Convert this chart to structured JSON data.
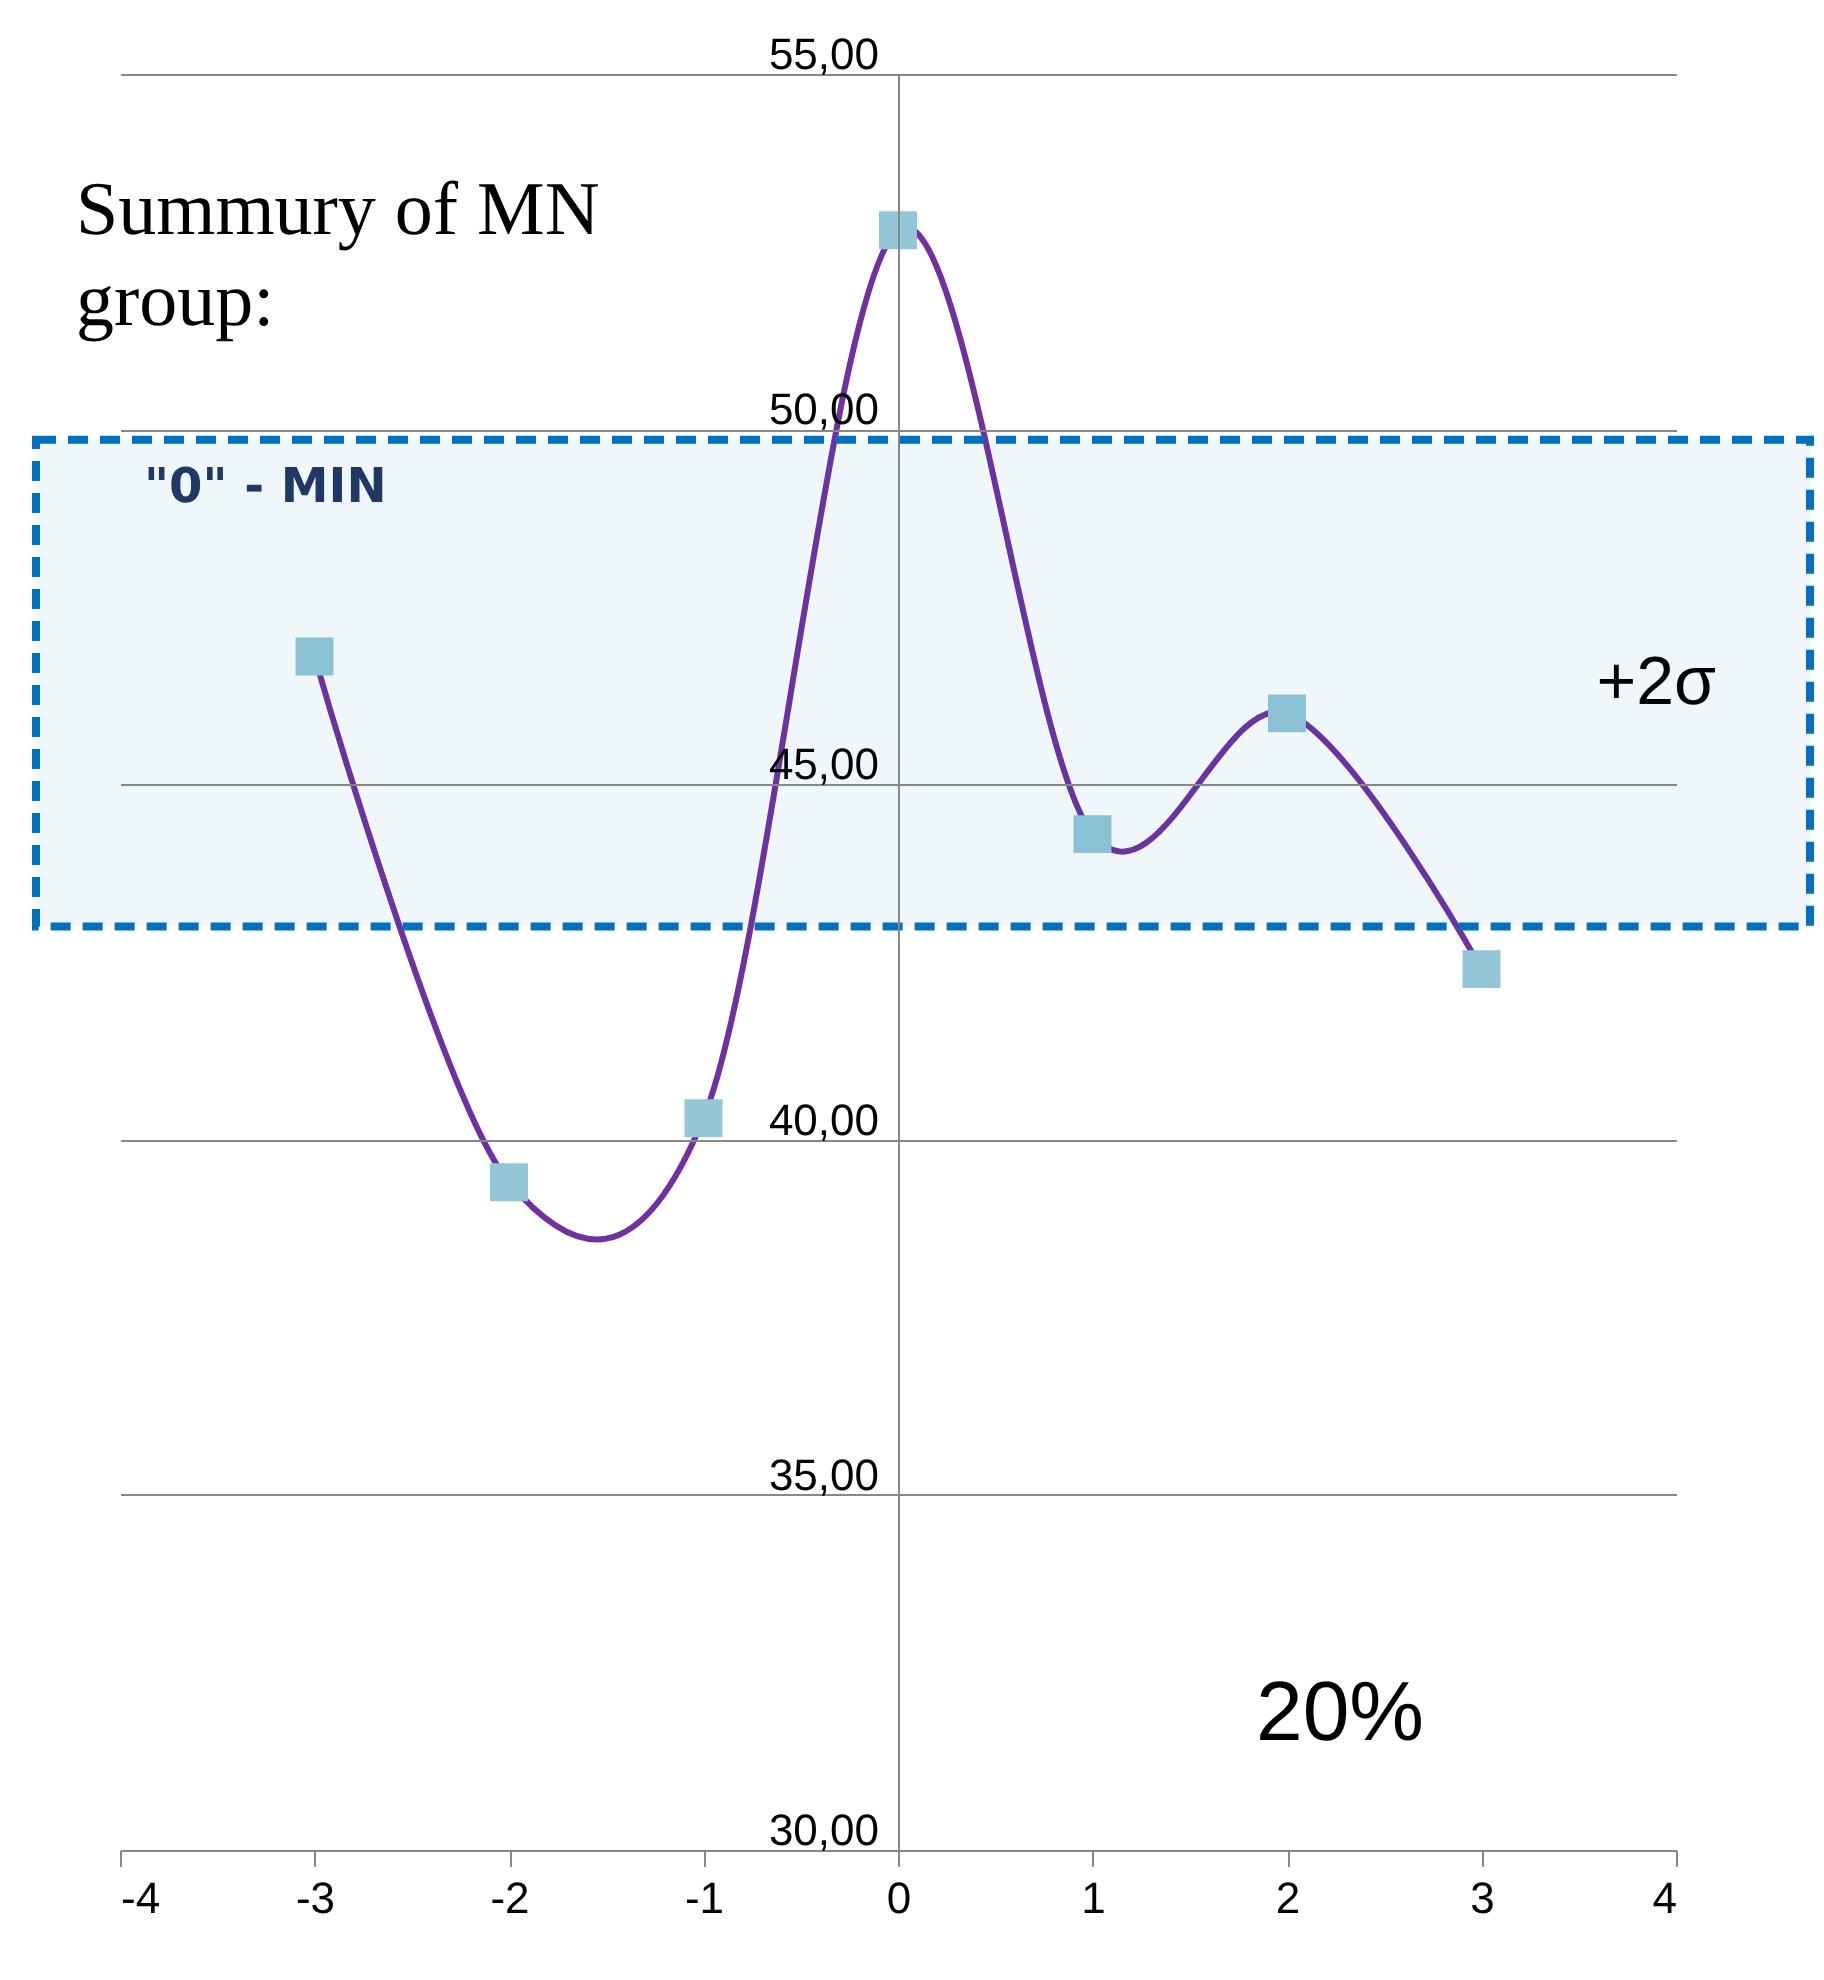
{
  "chart_data": {
    "type": "line",
    "x": [
      -3,
      -2,
      -1,
      0,
      1,
      2,
      3
    ],
    "series": [
      {
        "color": "#7030a0",
        "colors": [
          "#93c6d6",
          "#93c6d6",
          "#93c6d6",
          "#93c6d6",
          "#93c6d6",
          "#93c6d6",
          "#93c6d6"
        ],
        "values": [
          46.8,
          39.4,
          40.3,
          52.8,
          44.3,
          46.0,
          42.4
        ]
      }
    ],
    "xlim": [
      -4,
      4
    ],
    "xticks": [
      -4,
      -3,
      -2,
      -1,
      0,
      1,
      2,
      3,
      4
    ],
    "ylim": [
      30,
      55
    ],
    "yticks": [
      {
        "value": 30,
        "label": "30,00"
      },
      {
        "value": 35,
        "label": "35,00"
      },
      {
        "value": 40,
        "label": "40,00"
      },
      {
        "value": 45,
        "label": "45,00"
      },
      {
        "value": 50,
        "label": "50,00"
      },
      {
        "value": 55,
        "label": "55,00"
      }
    ],
    "grid": "y",
    "marker": "square",
    "line_style": "solid",
    "bands": [
      {
        "axis": "y",
        "from": 43.0,
        "to": 49.85,
        "label": "+2σ",
        "color": "#0070c0"
      }
    ],
    "annotations": [
      "Summury of MN\ngroup:",
      "\"0\" - MIN",
      "20%"
    ]
  }
}
